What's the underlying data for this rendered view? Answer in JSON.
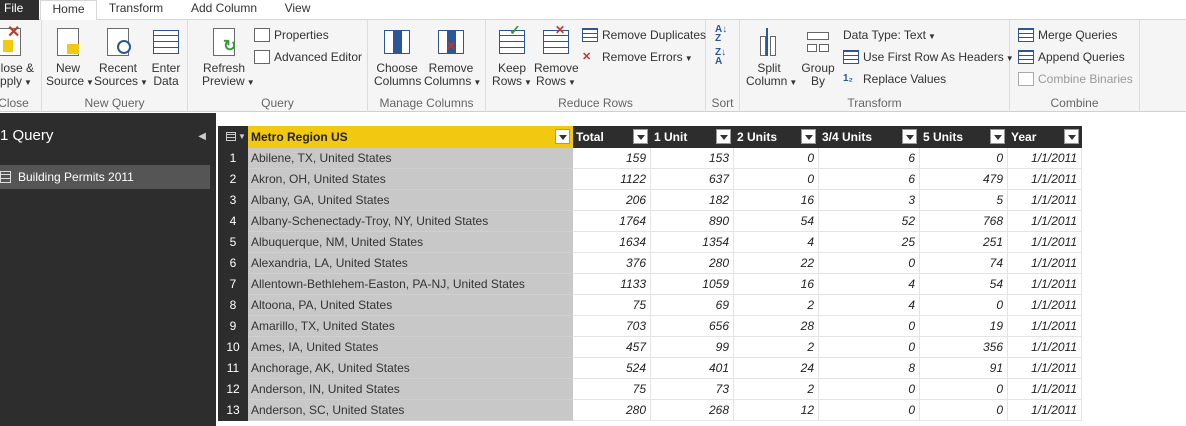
{
  "tabs": {
    "file": "File",
    "home": "Home",
    "transform": "Transform",
    "add_column": "Add Column",
    "view": "View"
  },
  "ribbon": {
    "close": {
      "btn_line1": "Close &",
      "btn_line2": "Apply",
      "label": "Close"
    },
    "new_query": {
      "new_source_1": "New",
      "new_source_2": "Source",
      "recent_1": "Recent",
      "recent_2": "Sources",
      "enter_1": "Enter",
      "enter_2": "Data",
      "label": "New Query"
    },
    "query": {
      "refresh_1": "Refresh",
      "refresh_2": "Preview",
      "properties": "Properties",
      "advanced_editor": "Advanced Editor",
      "label": "Query"
    },
    "manage_columns": {
      "choose_1": "Choose",
      "choose_2": "Columns",
      "remove_1": "Remove",
      "remove_2": "Columns",
      "label": "Manage Columns"
    },
    "reduce_rows": {
      "keep_1": "Keep",
      "keep_2": "Rows",
      "remove_1": "Remove",
      "remove_2": "Rows",
      "remove_duplicates": "Remove Duplicates",
      "remove_errors": "Remove Errors",
      "label": "Reduce Rows"
    },
    "sort": {
      "label": "Sort"
    },
    "transform": {
      "split_1": "Split",
      "split_2": "Column",
      "group_1": "Group",
      "group_2": "By",
      "data_type": "Data Type: Text",
      "use_first_row": "Use First Row As Headers",
      "replace_values": "Replace Values",
      "label": "Transform"
    },
    "combine": {
      "merge": "Merge Queries",
      "append": "Append Queries",
      "combine_binaries": "Combine Binaries",
      "label": "Combine"
    }
  },
  "left_pane": {
    "title": "1 Query",
    "items": [
      {
        "label": "Building Permits 2011"
      }
    ]
  },
  "table": {
    "columns": [
      "Metro Region US",
      "Total",
      "1 Unit",
      "2 Units",
      "3/4 Units",
      "5 Units",
      "Year"
    ],
    "rows": [
      {
        "n": "1",
        "name": "Abilene, TX, United States",
        "total": "159",
        "u1": "153",
        "u2": "0",
        "u34": "6",
        "u5": "0",
        "year": "1/1/2011"
      },
      {
        "n": "2",
        "name": "Akron, OH, United States",
        "total": "1122",
        "u1": "637",
        "u2": "0",
        "u34": "6",
        "u5": "479",
        "year": "1/1/2011"
      },
      {
        "n": "3",
        "name": "Albany, GA, United States",
        "total": "206",
        "u1": "182",
        "u2": "16",
        "u34": "3",
        "u5": "5",
        "year": "1/1/2011"
      },
      {
        "n": "4",
        "name": "Albany-Schenectady-Troy, NY, United States",
        "total": "1764",
        "u1": "890",
        "u2": "54",
        "u34": "52",
        "u5": "768",
        "year": "1/1/2011"
      },
      {
        "n": "5",
        "name": "Albuquerque, NM, United States",
        "total": "1634",
        "u1": "1354",
        "u2": "4",
        "u34": "25",
        "u5": "251",
        "year": "1/1/2011"
      },
      {
        "n": "6",
        "name": "Alexandria, LA, United States",
        "total": "376",
        "u1": "280",
        "u2": "22",
        "u34": "0",
        "u5": "74",
        "year": "1/1/2011"
      },
      {
        "n": "7",
        "name": "Allentown-Bethlehem-Easton, PA-NJ, United States",
        "total": "1133",
        "u1": "1059",
        "u2": "16",
        "u34": "4",
        "u5": "54",
        "year": "1/1/2011"
      },
      {
        "n": "8",
        "name": "Altoona, PA, United States",
        "total": "75",
        "u1": "69",
        "u2": "2",
        "u34": "4",
        "u5": "0",
        "year": "1/1/2011"
      },
      {
        "n": "9",
        "name": "Amarillo, TX, United States",
        "total": "703",
        "u1": "656",
        "u2": "28",
        "u34": "0",
        "u5": "19",
        "year": "1/1/2011"
      },
      {
        "n": "10",
        "name": "Ames, IA, United States",
        "total": "457",
        "u1": "99",
        "u2": "2",
        "u34": "0",
        "u5": "356",
        "year": "1/1/2011"
      },
      {
        "n": "11",
        "name": "Anchorage, AK, United States",
        "total": "524",
        "u1": "401",
        "u2": "24",
        "u34": "8",
        "u5": "91",
        "year": "1/1/2011"
      },
      {
        "n": "12",
        "name": "Anderson, IN, United States",
        "total": "75",
        "u1": "73",
        "u2": "2",
        "u34": "0",
        "u5": "0",
        "year": "1/1/2011"
      },
      {
        "n": "13",
        "name": "Anderson, SC, United States",
        "total": "280",
        "u1": "268",
        "u2": "12",
        "u34": "0",
        "u5": "0",
        "year": "1/1/2011"
      }
    ]
  }
}
